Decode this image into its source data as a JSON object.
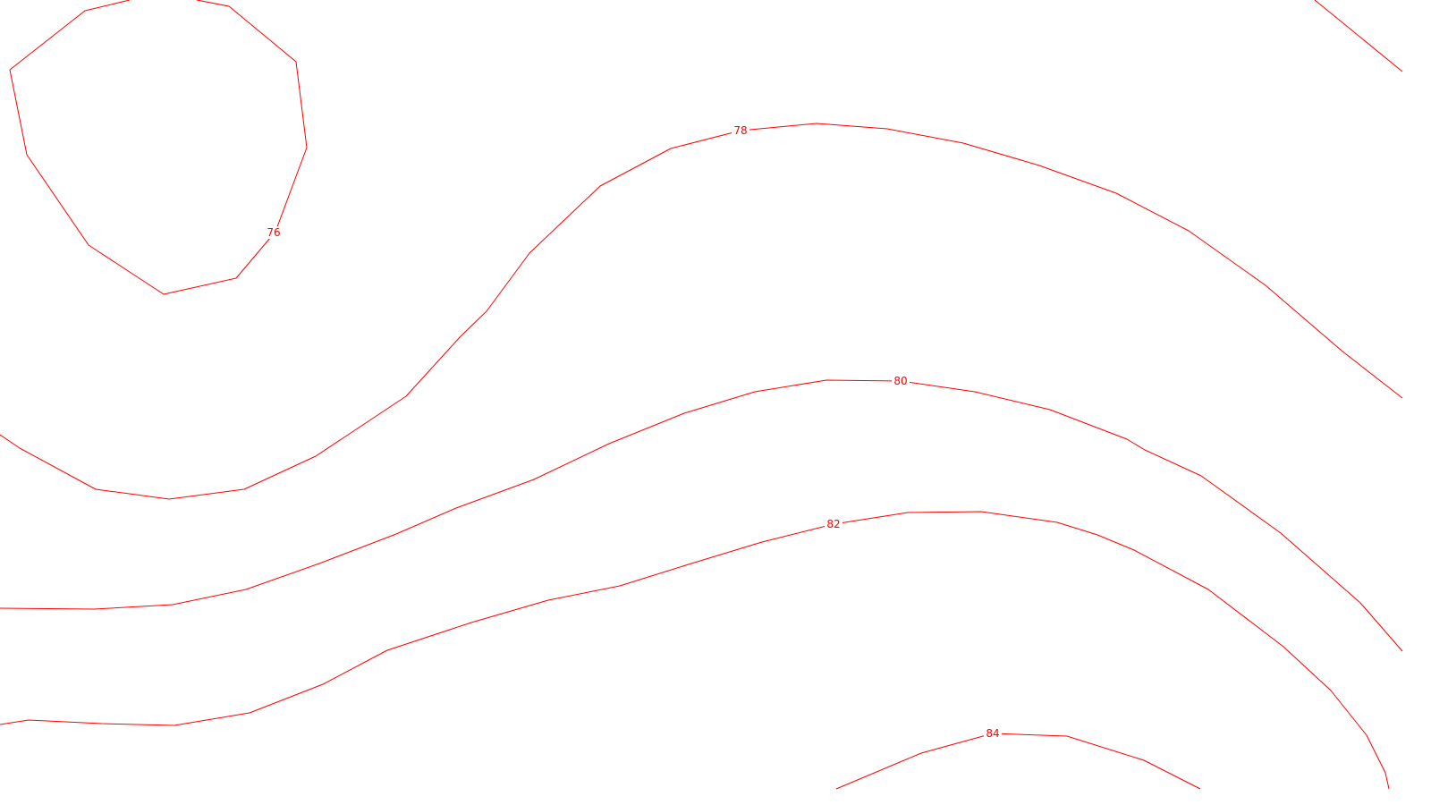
{
  "map": {
    "contour_color": "#ff0000",
    "background_color": "#ffffff",
    "contours": [
      {
        "id": "contour-76",
        "label": "76"
      },
      {
        "id": "contour-78-upper",
        "label": ""
      },
      {
        "id": "contour-78",
        "label": "78"
      },
      {
        "id": "contour-80",
        "label": "80"
      },
      {
        "id": "contour-82",
        "label": "82"
      },
      {
        "id": "contour-84",
        "label": "84"
      }
    ]
  }
}
